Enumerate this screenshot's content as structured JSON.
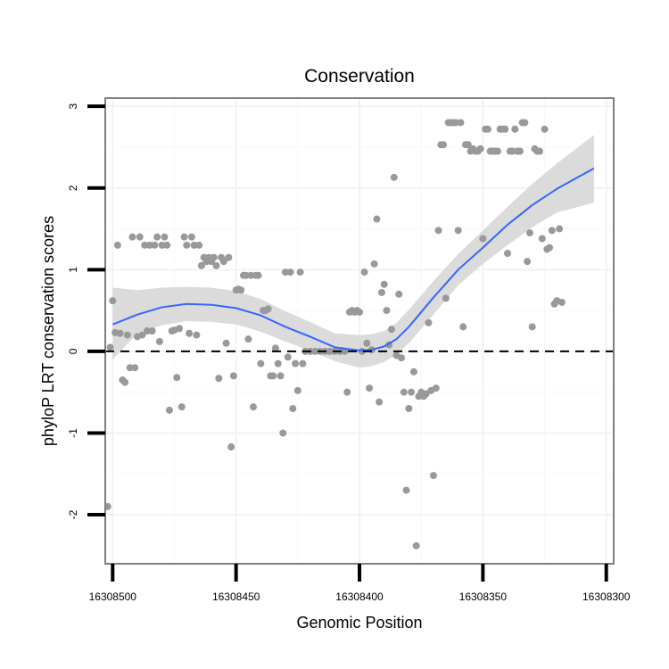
{
  "chart_data": {
    "type": "scatter",
    "title": "Conservation",
    "xlabel": "Genomic Position",
    "ylabel": "phyloP LRT conservation scores",
    "x_reversed": true,
    "xlim": [
      16308503,
      16308297
    ],
    "ylim": [
      -2.6,
      3.1
    ],
    "x_ticks": [
      16308500,
      16308450,
      16308400,
      16308350,
      16308300
    ],
    "x_tick_labels": [
      "16308500",
      "16308450",
      "16308400",
      "16308350",
      "16308300"
    ],
    "y_ticks": [
      -2,
      -1,
      0,
      1,
      2,
      3
    ],
    "y_tick_labels": [
      "-2",
      "-1",
      "0",
      "1",
      "2",
      "3"
    ],
    "grid": true,
    "reference_line": {
      "y": 0,
      "style": "dashed",
      "color": "#000000"
    },
    "colors": {
      "points": "#999999",
      "smooth": "#3366ff",
      "ribbon": "#d9d9d9",
      "panel_border": "#7f7f7f"
    },
    "series": [
      {
        "name": "phyloP points",
        "type": "scatter",
        "points": [
          [
            16308502,
            -1.9
          ],
          [
            16308501,
            0.05
          ],
          [
            16308500,
            0.62
          ],
          [
            16308499,
            0.23
          ],
          [
            16308498,
            1.3
          ],
          [
            16308497,
            0.22
          ],
          [
            16308496,
            -0.35
          ],
          [
            16308495,
            -0.38
          ],
          [
            16308494,
            0.2
          ],
          [
            16308493,
            -0.2
          ],
          [
            16308492,
            1.4
          ],
          [
            16308491,
            -0.2
          ],
          [
            16308490,
            0.18
          ],
          [
            16308489,
            1.4
          ],
          [
            16308488,
            0.2
          ],
          [
            16308487,
            1.3
          ],
          [
            16308486,
            0.25
          ],
          [
            16308485,
            1.3
          ],
          [
            16308484,
            0.25
          ],
          [
            16308483,
            1.3
          ],
          [
            16308482,
            1.4
          ],
          [
            16308481,
            0.12
          ],
          [
            16308480,
            1.3
          ],
          [
            16308479,
            1.4
          ],
          [
            16308478,
            1.3
          ],
          [
            16308477,
            -0.72
          ],
          [
            16308476,
            0.25
          ],
          [
            16308475,
            0.26
          ],
          [
            16308474,
            -0.32
          ],
          [
            16308473,
            0.28
          ],
          [
            16308472,
            -0.68
          ],
          [
            16308471,
            1.4
          ],
          [
            16308470,
            1.3
          ],
          [
            16308469,
            0.22
          ],
          [
            16308468,
            1.4
          ],
          [
            16308467,
            1.3
          ],
          [
            16308466,
            0.2
          ],
          [
            16308465,
            1.3
          ],
          [
            16308464,
            1.05
          ],
          [
            16308463,
            1.15
          ],
          [
            16308462,
            1.1
          ],
          [
            16308461,
            1.15
          ],
          [
            16308460,
            1.1
          ],
          [
            16308459,
            1.15
          ],
          [
            16308458,
            1.05
          ],
          [
            16308457,
            -0.33
          ],
          [
            16308456,
            1.15
          ],
          [
            16308455,
            1.1
          ],
          [
            16308454,
            0.1
          ],
          [
            16308453,
            1.15
          ],
          [
            16308452,
            -1.17
          ],
          [
            16308451,
            -0.3
          ],
          [
            16308450,
            0.75
          ],
          [
            16308449,
            0.76
          ],
          [
            16308448,
            0.75
          ],
          [
            16308447,
            0.93
          ],
          [
            16308446,
            0.93
          ],
          [
            16308445,
            0.15
          ],
          [
            16308444,
            0.93
          ],
          [
            16308443,
            -0.68
          ],
          [
            16308442,
            0.93
          ],
          [
            16308441,
            0.93
          ],
          [
            16308440,
            -0.15
          ],
          [
            16308439,
            0.5
          ],
          [
            16308438,
            0.5
          ],
          [
            16308437,
            0.52
          ],
          [
            16308436,
            -0.3
          ],
          [
            16308435,
            -0.3
          ],
          [
            16308434,
            0.04
          ],
          [
            16308433,
            -0.15
          ],
          [
            16308432,
            -0.3
          ],
          [
            16308431,
            -1.0
          ],
          [
            16308430,
            0.97
          ],
          [
            16308429,
            -0.07
          ],
          [
            16308428,
            0.97
          ],
          [
            16308427,
            -0.7
          ],
          [
            16308426,
            -0.15
          ],
          [
            16308425,
            -0.48
          ],
          [
            16308424,
            0.97
          ],
          [
            16308423,
            -0.15
          ],
          [
            16308422,
            0.0
          ],
          [
            16308420,
            0.0
          ],
          [
            16308418,
            0.0
          ],
          [
            16308416,
            0.0
          ],
          [
            16308414,
            0.0
          ],
          [
            16308412,
            0.0
          ],
          [
            16308410,
            0.0
          ],
          [
            16308408,
            0.0
          ],
          [
            16308406,
            0.0
          ],
          [
            16308405,
            -0.5
          ],
          [
            16308404,
            0.48
          ],
          [
            16308403,
            0.5
          ],
          [
            16308402,
            0.48
          ],
          [
            16308401,
            0.5
          ],
          [
            16308400,
            0.48
          ],
          [
            16308399,
            0.0
          ],
          [
            16308398,
            0.97
          ],
          [
            16308397,
            0.1
          ],
          [
            16308396,
            -0.45
          ],
          [
            16308395,
            0.02
          ],
          [
            16308394,
            1.07
          ],
          [
            16308393,
            1.62
          ],
          [
            16308392,
            -0.62
          ],
          [
            16308391,
            0.72
          ],
          [
            16308390,
            0.82
          ],
          [
            16308389,
            0.5
          ],
          [
            16308388,
            0.08
          ],
          [
            16308387,
            0.27
          ],
          [
            16308386,
            2.13
          ],
          [
            16308385,
            -0.05
          ],
          [
            16308384,
            0.7
          ],
          [
            16308383,
            -0.08
          ],
          [
            16308382,
            -0.5
          ],
          [
            16308381,
            -1.7
          ],
          [
            16308380,
            -0.7
          ],
          [
            16308379,
            -0.5
          ],
          [
            16308378,
            -0.25
          ],
          [
            16308377,
            -2.38
          ],
          [
            16308376,
            -0.55
          ],
          [
            16308375,
            -0.5
          ],
          [
            16308374,
            -0.55
          ],
          [
            16308373,
            -0.52
          ],
          [
            16308372,
            0.35
          ],
          [
            16308371,
            -0.48
          ],
          [
            16308370,
            -1.52
          ],
          [
            16308369,
            -0.45
          ],
          [
            16308368,
            1.48
          ],
          [
            16308367,
            2.53
          ],
          [
            16308366,
            2.53
          ],
          [
            16308365,
            0.65
          ],
          [
            16308364,
            2.8
          ],
          [
            16308363,
            2.8
          ],
          [
            16308362,
            2.8
          ],
          [
            16308361,
            2.8
          ],
          [
            16308360,
            1.48
          ],
          [
            16308359,
            2.8
          ],
          [
            16308358,
            0.3
          ],
          [
            16308357,
            2.53
          ],
          [
            16308356,
            2.53
          ],
          [
            16308355,
            2.45
          ],
          [
            16308354,
            2.48
          ],
          [
            16308353,
            2.45
          ],
          [
            16308352,
            2.45
          ],
          [
            16308351,
            2.48
          ],
          [
            16308350,
            1.38
          ],
          [
            16308349,
            2.72
          ],
          [
            16308348,
            2.72
          ],
          [
            16308347,
            2.45
          ],
          [
            16308346,
            2.45
          ],
          [
            16308345,
            2.45
          ],
          [
            16308344,
            2.45
          ],
          [
            16308343,
            2.72
          ],
          [
            16308342,
            2.72
          ],
          [
            16308341,
            2.72
          ],
          [
            16308340,
            1.2
          ],
          [
            16308339,
            2.45
          ],
          [
            16308338,
            2.45
          ],
          [
            16308337,
            2.72
          ],
          [
            16308336,
            2.45
          ],
          [
            16308335,
            2.45
          ],
          [
            16308334,
            2.8
          ],
          [
            16308333,
            2.8
          ],
          [
            16308332,
            1.1
          ],
          [
            16308331,
            1.45
          ],
          [
            16308330,
            0.3
          ],
          [
            16308329,
            2.48
          ],
          [
            16308328,
            2.45
          ],
          [
            16308327,
            2.45
          ],
          [
            16308326,
            1.38
          ],
          [
            16308325,
            2.72
          ],
          [
            16308324,
            1.25
          ],
          [
            16308323,
            1.27
          ],
          [
            16308322,
            1.48
          ],
          [
            16308321,
            0.58
          ],
          [
            16308320,
            0.62
          ],
          [
            16308319,
            1.5
          ],
          [
            16308318,
            0.6
          ]
        ]
      },
      {
        "name": "loess smooth",
        "type": "line",
        "x": [
          16308500,
          16308490,
          16308480,
          16308470,
          16308460,
          16308450,
          16308440,
          16308430,
          16308420,
          16308410,
          16308400,
          16308395,
          16308390,
          16308385,
          16308380,
          16308370,
          16308360,
          16308350,
          16308340,
          16308330,
          16308320,
          16308305
        ],
        "y": [
          0.33,
          0.45,
          0.54,
          0.58,
          0.57,
          0.53,
          0.44,
          0.3,
          0.18,
          0.05,
          0.01,
          0.02,
          0.06,
          0.15,
          0.3,
          0.66,
          1.0,
          1.27,
          1.55,
          1.79,
          1.99,
          2.24
        ],
        "ci_lower": [
          -0.1,
          0.22,
          0.32,
          0.37,
          0.36,
          0.33,
          0.24,
          0.12,
          0.01,
          -0.12,
          -0.2,
          -0.18,
          -0.13,
          -0.04,
          0.1,
          0.45,
          0.81,
          1.07,
          1.3,
          1.52,
          1.7,
          1.82
        ],
        "ci_upper": [
          0.78,
          0.75,
          0.78,
          0.79,
          0.78,
          0.74,
          0.64,
          0.49,
          0.36,
          0.22,
          0.2,
          0.21,
          0.25,
          0.35,
          0.51,
          0.86,
          1.19,
          1.48,
          1.77,
          2.05,
          2.3,
          2.65
        ]
      }
    ]
  }
}
